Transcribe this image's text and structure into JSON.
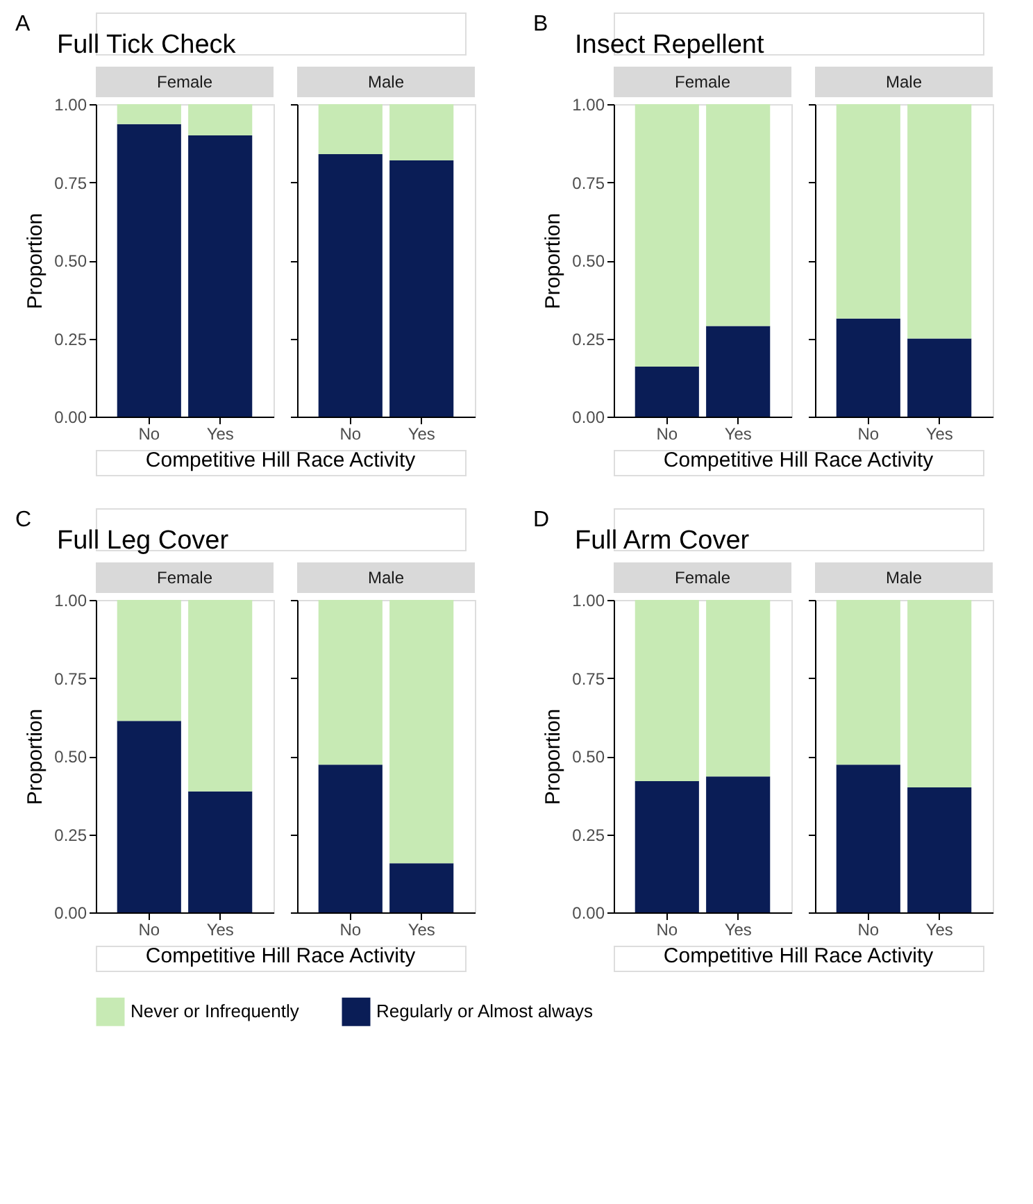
{
  "chart_data": [
    {
      "type": "bar",
      "stacked": true,
      "title": "Full Tick Check",
      "subtitle": "Female",
      "annotations": [
        "A"
      ],
      "xlabel": "Competitive Hill Race Activity",
      "ylabel": "Proportion",
      "categories": [
        "No",
        "Yes"
      ],
      "legend": "bottom",
      "series": [
        {
          "name": "Regularly or Almost always",
          "color": "#0a1d56",
          "values": [
            0.936,
            0.9
          ]
        },
        {
          "name": "Never or Infrequently",
          "color": "#c7eab4",
          "values": [
            0.064,
            0.1
          ]
        }
      ],
      "ylim": [
        0,
        1
      ],
      "yticks": [
        {
          "value": 0,
          "label": "0.00"
        },
        {
          "value": 0.25,
          "label": "0.25"
        },
        {
          "value": 0.5,
          "label": "0.50"
        },
        {
          "value": 0.75,
          "label": "0.75"
        },
        {
          "value": 1,
          "label": "1.00"
        }
      ]
    },
    {
      "type": "bar",
      "stacked": true,
      "subtitle": "Male",
      "categories": [
        "No",
        "Yes"
      ],
      "tick_labels": "x",
      "series": [
        {
          "name": "Regularly or Almost always",
          "color": "#0a1d56",
          "values": [
            0.84,
            0.82
          ]
        },
        {
          "name": "Never or Infrequently",
          "color": "#c7eab4",
          "values": [
            0.16,
            0.18
          ]
        }
      ],
      "ylim": [
        0,
        1
      ],
      "yticks": [
        {
          "value": 0,
          "label": "0.00"
        },
        {
          "value": 0.25,
          "label": "0.25"
        },
        {
          "value": 0.5,
          "label": "0.50"
        },
        {
          "value": 0.75,
          "label": "0.75"
        },
        {
          "value": 1,
          "label": "1.00"
        }
      ]
    },
    {
      "type": "bar",
      "stacked": true,
      "title": "Insect Repellent",
      "subtitle": "Female",
      "annotations": [
        "B"
      ],
      "xlabel": "Competitive Hill Race Activity",
      "ylabel": "Proportion",
      "categories": [
        "No",
        "Yes"
      ],
      "series": [
        {
          "name": "Regularly or Almost always",
          "color": "#0a1d56",
          "values": [
            0.16,
            0.29
          ]
        },
        {
          "name": "Never or Infrequently",
          "color": "#c7eab4",
          "values": [
            0.84,
            0.71
          ]
        }
      ],
      "ylim": [
        0,
        1
      ],
      "yticks": [
        {
          "value": 0,
          "label": "0.00"
        },
        {
          "value": 0.25,
          "label": "0.25"
        },
        {
          "value": 0.5,
          "label": "0.50"
        },
        {
          "value": 0.75,
          "label": "0.75"
        },
        {
          "value": 1,
          "label": "1.00"
        }
      ]
    },
    {
      "type": "bar",
      "stacked": true,
      "subtitle": "Male",
      "categories": [
        "No",
        "Yes"
      ],
      "tick_labels": "x",
      "series": [
        {
          "name": "Regularly or Almost always",
          "color": "#0a1d56",
          "values": [
            0.314,
            0.25
          ]
        },
        {
          "name": "Never or Infrequently",
          "color": "#c7eab4",
          "values": [
            0.686,
            0.75
          ]
        }
      ],
      "ylim": [
        0,
        1
      ],
      "yticks": [
        {
          "value": 0,
          "label": "0.00"
        },
        {
          "value": 0.25,
          "label": "0.25"
        },
        {
          "value": 0.5,
          "label": "0.50"
        },
        {
          "value": 0.75,
          "label": "0.75"
        },
        {
          "value": 1,
          "label": "1.00"
        }
      ]
    },
    {
      "type": "bar",
      "stacked": true,
      "title": "Full Leg Cover",
      "subtitle": "Female",
      "annotations": [
        "C"
      ],
      "xlabel": "Competitive Hill Race Activity",
      "ylabel": "Proportion",
      "categories": [
        "No",
        "Yes"
      ],
      "series": [
        {
          "name": "Regularly or Almost always",
          "color": "#0a1d56",
          "values": [
            0.613,
            0.387
          ]
        },
        {
          "name": "Never or Infrequently",
          "color": "#c7eab4",
          "values": [
            0.387,
            0.613
          ]
        }
      ],
      "ylim": [
        0,
        1
      ],
      "yticks": [
        {
          "value": 0,
          "label": "0.00"
        },
        {
          "value": 0.25,
          "label": "0.25"
        },
        {
          "value": 0.5,
          "label": "0.50"
        },
        {
          "value": 0.75,
          "label": "0.75"
        },
        {
          "value": 1,
          "label": "1.00"
        }
      ]
    },
    {
      "type": "bar",
      "stacked": true,
      "subtitle": "Male",
      "categories": [
        "No",
        "Yes"
      ],
      "tick_labels": "x",
      "series": [
        {
          "name": "Regularly or Almost always",
          "color": "#0a1d56",
          "values": [
            0.473,
            0.157
          ]
        },
        {
          "name": "Never or Infrequently",
          "color": "#c7eab4",
          "values": [
            0.527,
            0.843
          ]
        }
      ],
      "ylim": [
        0,
        1
      ],
      "yticks": [
        {
          "value": 0,
          "label": "0.00"
        },
        {
          "value": 0.25,
          "label": "0.25"
        },
        {
          "value": 0.5,
          "label": "0.50"
        },
        {
          "value": 0.75,
          "label": "0.75"
        },
        {
          "value": 1,
          "label": "1.00"
        }
      ]
    },
    {
      "type": "bar",
      "stacked": true,
      "title": "Full Arm Cover",
      "subtitle": "Female",
      "annotations": [
        "D"
      ],
      "xlabel": "Competitive Hill Race Activity",
      "ylabel": "Proportion",
      "categories": [
        "No",
        "Yes"
      ],
      "series": [
        {
          "name": "Regularly or Almost always",
          "color": "#0a1d56",
          "values": [
            0.42,
            0.435
          ]
        },
        {
          "name": "Never or Infrequently",
          "color": "#c7eab4",
          "values": [
            0.58,
            0.565
          ]
        }
      ],
      "ylim": [
        0,
        1
      ],
      "yticks": [
        {
          "value": 0,
          "label": "0.00"
        },
        {
          "value": 0.25,
          "label": "0.25"
        },
        {
          "value": 0.5,
          "label": "0.50"
        },
        {
          "value": 0.75,
          "label": "0.75"
        },
        {
          "value": 1,
          "label": "1.00"
        }
      ]
    },
    {
      "type": "bar",
      "stacked": true,
      "subtitle": "Male",
      "categories": [
        "No",
        "Yes"
      ],
      "tick_labels": "x",
      "series": [
        {
          "name": "Regularly or Almost always",
          "color": "#0a1d56",
          "values": [
            0.473,
            0.4
          ]
        },
        {
          "name": "Never or Infrequently",
          "color": "#c7eab4",
          "values": [
            0.527,
            0.6
          ]
        }
      ],
      "ylim": [
        0,
        1
      ],
      "yticks": [
        {
          "value": 0,
          "label": "0.00"
        },
        {
          "value": 0.25,
          "label": "0.25"
        },
        {
          "value": 0.5,
          "label": "0.50"
        },
        {
          "value": 0.75,
          "label": "0.75"
        },
        {
          "value": 1,
          "label": "1.00"
        }
      ]
    }
  ]
}
